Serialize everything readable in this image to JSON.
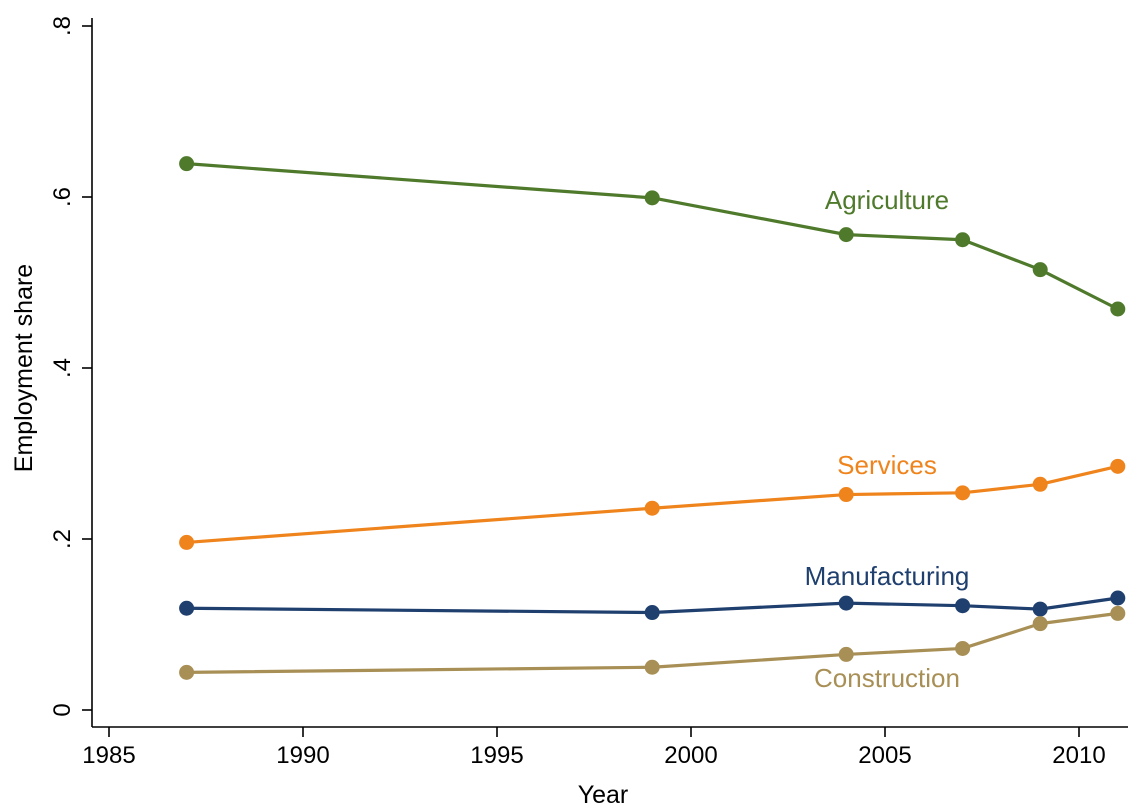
{
  "chart_data": {
    "type": "line",
    "xlabel": "Year",
    "ylabel": "Employment share",
    "xlim": [
      1984,
      2011.5
    ],
    "ylim": [
      0,
      0.8
    ],
    "xticks": [
      1985,
      1990,
      1995,
      2000,
      2005,
      2010
    ],
    "xtick_labels": [
      "1985",
      "1990",
      "1995",
      "2000",
      "2005",
      "2010"
    ],
    "yticks": [
      0,
      0.2,
      0.4,
      0.6,
      0.8
    ],
    "ytick_labels": [
      "0",
      ".2",
      ".4",
      ".6",
      ".8"
    ],
    "grid": false,
    "legend": "none (series labeled inline)",
    "x": [
      1987,
      1999,
      2004,
      2007,
      2009,
      2011
    ],
    "series": [
      {
        "name": "Agriculture",
        "color": "#4f7a2c",
        "values": [
          0.639,
          0.599,
          0.556,
          0.55,
          0.515,
          0.469
        ]
      },
      {
        "name": "Services",
        "color": "#ef841c",
        "values": [
          0.196,
          0.236,
          0.252,
          0.254,
          0.264,
          0.285
        ]
      },
      {
        "name": "Manufacturing",
        "color": "#1f3f6e",
        "values": [
          0.119,
          0.114,
          0.125,
          0.122,
          0.118,
          0.131
        ]
      },
      {
        "name": "Construction",
        "color": "#a88f55",
        "values": [
          0.044,
          0.05,
          0.065,
          0.072,
          0.101,
          0.113
        ]
      }
    ]
  }
}
